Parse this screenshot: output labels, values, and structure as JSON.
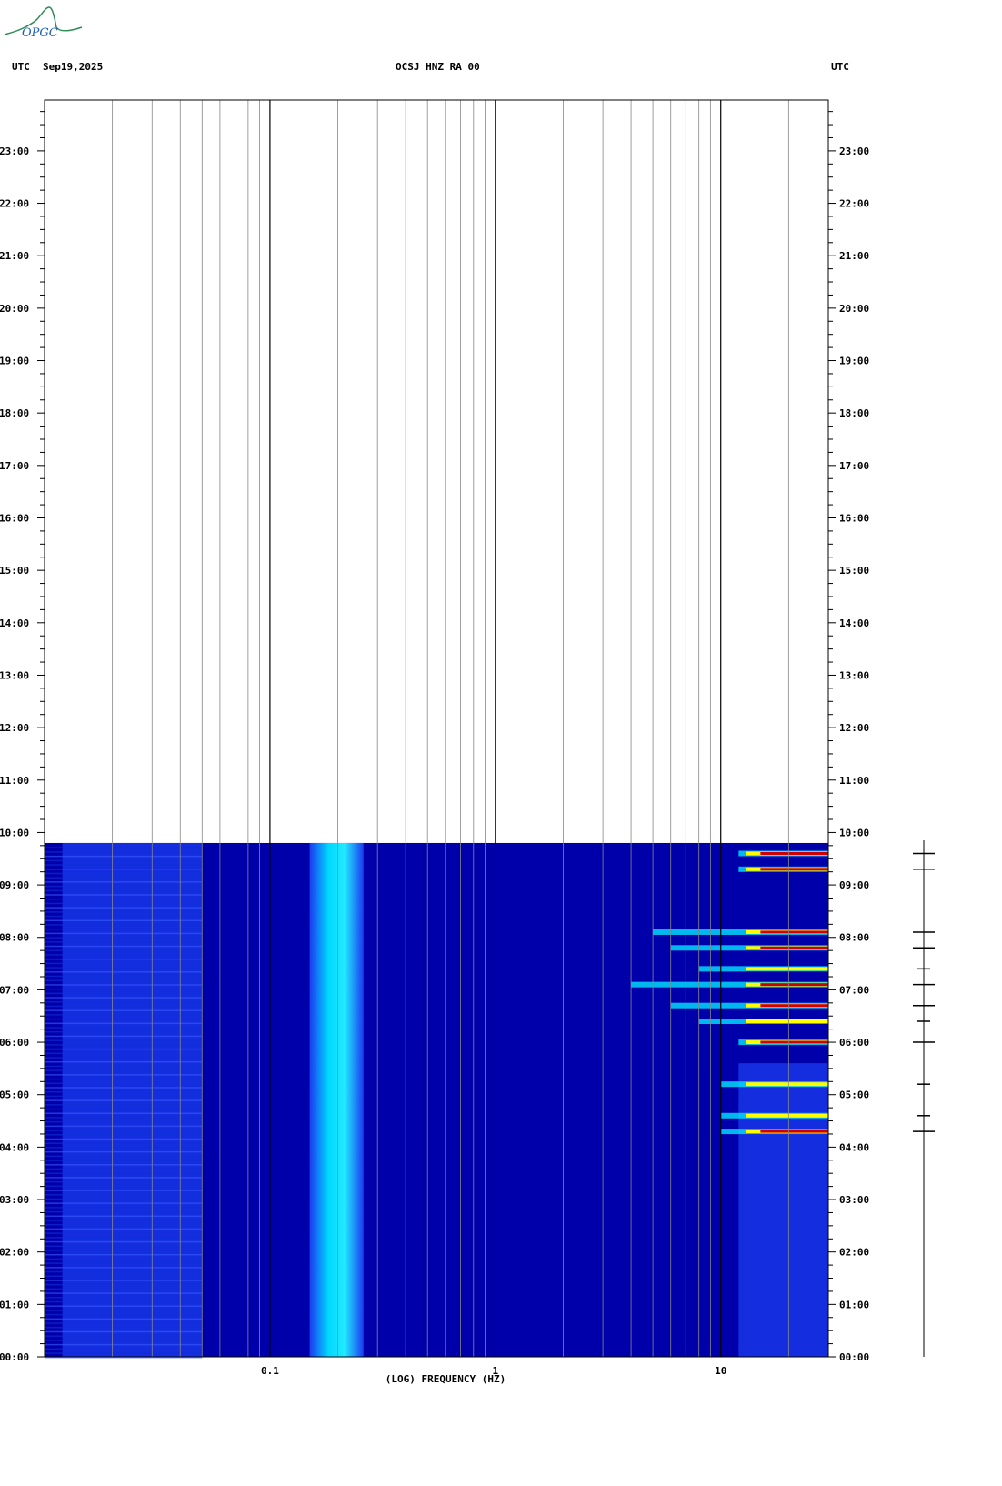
{
  "header": {
    "tz_left": "UTC",
    "date": "Sep19,2025",
    "station": "OCSJ HNZ RA 00",
    "tz_right": "UTC"
  },
  "logo": {
    "text": "OPGC",
    "color": "#2e8b57"
  },
  "chart_data": {
    "type": "heatmap",
    "title": "OCSJ HNZ RA 00",
    "xlabel": "(LOG) FREQUENCY (HZ)",
    "ylabel": "",
    "x_scale": "log",
    "xlim": [
      0.01,
      30
    ],
    "x_major_ticks": [
      {
        "value": 0.1,
        "label": "0.1"
      },
      {
        "value": 1,
        "label": "1"
      },
      {
        "value": 10,
        "label": "10"
      }
    ],
    "y_ticks": [
      "00:00",
      "01:00",
      "02:00",
      "03:00",
      "04:00",
      "05:00",
      "06:00",
      "07:00",
      "08:00",
      "09:00",
      "10:00",
      "11:00",
      "12:00",
      "13:00",
      "14:00",
      "15:00",
      "16:00",
      "17:00",
      "18:00",
      "19:00",
      "20:00",
      "21:00",
      "22:00",
      "23:00"
    ],
    "y_range_hours": [
      0,
      24
    ],
    "data_end_hour": 9.8,
    "grid": true,
    "colors": {
      "background": "#0000aa",
      "low": "#1a3cf0",
      "mid": "#00e5ff",
      "high": "#ffff00",
      "peak": "#cc0000"
    },
    "bands": [
      {
        "f_low": 0.15,
        "f_high": 0.26,
        "hour_start": 0,
        "hour_end": 9.8,
        "level": "mid"
      },
      {
        "f_low": 0.012,
        "f_high": 0.05,
        "hour_start": 0,
        "hour_end": 9.8,
        "level": "low"
      },
      {
        "f_low": 12,
        "f_high": 30,
        "hour_start": 0,
        "hour_end": 5.6,
        "level": "low"
      }
    ],
    "events": [
      {
        "hour": 9.6,
        "f_low": 12,
        "f_high": 30,
        "level": "peak"
      },
      {
        "hour": 9.3,
        "f_low": 12,
        "f_high": 30,
        "level": "peak"
      },
      {
        "hour": 8.1,
        "f_low": 5,
        "f_high": 30,
        "level": "peak"
      },
      {
        "hour": 7.8,
        "f_low": 6,
        "f_high": 30,
        "level": "peak"
      },
      {
        "hour": 7.4,
        "f_low": 8,
        "f_high": 30,
        "level": "high"
      },
      {
        "hour": 7.1,
        "f_low": 4,
        "f_high": 30,
        "level": "peak"
      },
      {
        "hour": 6.7,
        "f_low": 6,
        "f_high": 30,
        "level": "peak"
      },
      {
        "hour": 6.4,
        "f_low": 8,
        "f_high": 30,
        "level": "high"
      },
      {
        "hour": 6.0,
        "f_low": 12,
        "f_high": 30,
        "level": "peak"
      },
      {
        "hour": 5.2,
        "f_low": 10,
        "f_high": 30,
        "level": "high"
      },
      {
        "hour": 4.6,
        "f_low": 10,
        "f_high": 30,
        "level": "high"
      },
      {
        "hour": 4.3,
        "f_low": 10,
        "f_high": 30,
        "level": "peak"
      }
    ]
  }
}
